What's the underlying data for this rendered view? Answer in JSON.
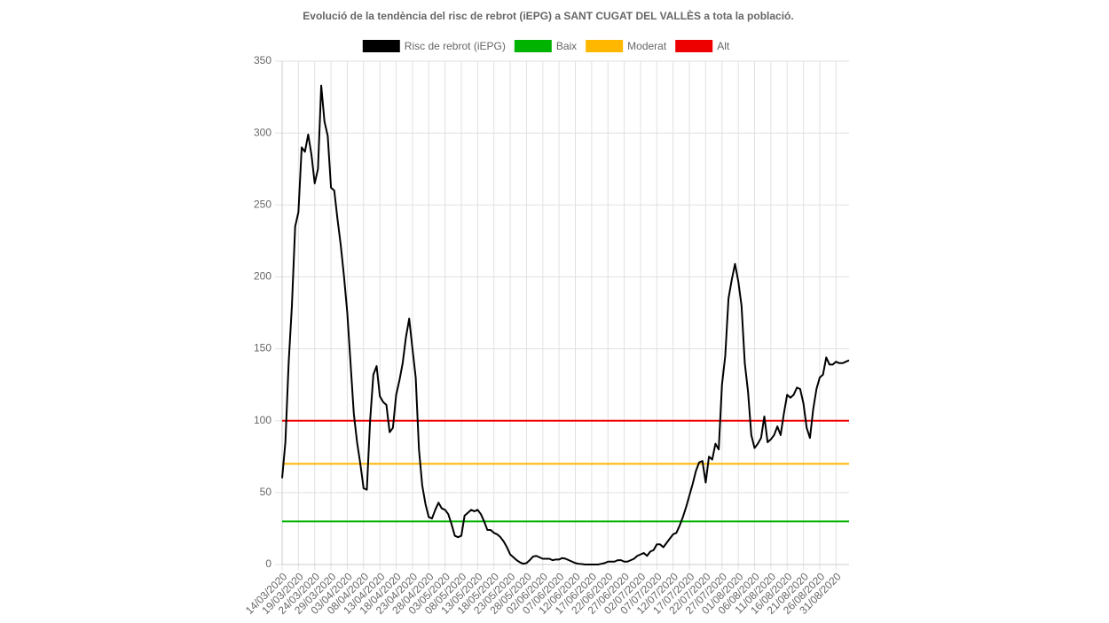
{
  "chart_data": {
    "type": "line",
    "title": "Evolució de la tendència del risc de rebrot (iEPG) a SANT CUGAT DEL VALLÈS a tota la població.",
    "categories": [
      "14/03/2020",
      null,
      null,
      null,
      null,
      "19/03/2020",
      null,
      null,
      null,
      null,
      "24/03/2020",
      null,
      null,
      null,
      null,
      "29/03/2020",
      null,
      null,
      null,
      null,
      "03/04/2020",
      null,
      null,
      null,
      null,
      "08/04/2020",
      null,
      null,
      null,
      null,
      "13/04/2020",
      null,
      null,
      null,
      null,
      "18/04/2020",
      null,
      null,
      null,
      null,
      "23/04/2020",
      null,
      null,
      null,
      null,
      "28/04/2020",
      null,
      null,
      null,
      null,
      "03/05/2020",
      null,
      null,
      null,
      null,
      "08/05/2020",
      null,
      null,
      null,
      null,
      "13/05/2020",
      null,
      null,
      null,
      null,
      "18/05/2020",
      null,
      null,
      null,
      null,
      "23/05/2020",
      null,
      null,
      null,
      null,
      "28/05/2020",
      null,
      null,
      null,
      null,
      "02/06/2020",
      null,
      null,
      null,
      null,
      "07/06/2020",
      null,
      null,
      null,
      null,
      "12/06/2020",
      null,
      null,
      null,
      null,
      "17/06/2020",
      null,
      null,
      null,
      null,
      "22/06/2020",
      null,
      null,
      null,
      null,
      "27/06/2020",
      null,
      null,
      null,
      null,
      "02/07/2020",
      null,
      null,
      null,
      null,
      "07/07/2020",
      null,
      null,
      null,
      null,
      "12/07/2020",
      null,
      null,
      null,
      null,
      "17/07/2020",
      null,
      null,
      null,
      null,
      "22/07/2020",
      null,
      null,
      null,
      null,
      "27/07/2020",
      null,
      null,
      null,
      null,
      "01/08/2020",
      null,
      null,
      null,
      null,
      "06/08/2020",
      null,
      null,
      null,
      null,
      "11/08/2020",
      null,
      null,
      null,
      null,
      "16/08/2020",
      null,
      null,
      null,
      null,
      "21/08/2020",
      null,
      null,
      null,
      null,
      "26/08/2020",
      null,
      null,
      null,
      null,
      "31/08/2020",
      null,
      null,
      null,
      null
    ],
    "series": [
      {
        "name": "Risc de rebrot (iEPG)",
        "color": "#000000",
        "values": [
          60,
          85,
          140,
          180,
          235,
          245,
          290,
          287,
          299,
          285,
          265,
          275,
          333,
          308,
          298,
          262,
          260,
          240,
          222,
          200,
          175,
          140,
          105,
          85,
          70,
          53,
          52,
          100,
          132,
          138,
          117,
          113,
          111,
          92,
          95,
          118,
          128,
          140,
          158,
          171,
          150,
          130,
          80,
          55,
          42,
          33,
          32,
          38,
          43,
          39,
          38,
          35,
          28,
          20,
          19,
          20,
          34,
          36,
          38,
          37,
          38,
          35,
          30,
          24,
          24,
          22,
          21,
          19,
          16,
          12,
          7,
          5,
          3,
          1.5,
          0.5,
          1,
          3,
          5.5,
          6,
          5,
          4,
          4,
          4,
          3,
          3.5,
          3.5,
          4.5,
          4,
          3,
          2,
          1,
          0.5,
          0.3,
          0,
          0,
          0,
          0,
          0,
          0.5,
          1,
          2,
          2,
          2,
          3,
          3,
          2,
          2,
          3,
          4,
          6,
          7,
          8,
          6,
          9,
          10,
          14,
          14,
          12,
          15,
          18,
          21,
          22,
          27,
          33,
          40,
          48,
          56,
          65,
          71,
          72,
          57,
          75,
          73,
          84,
          80,
          125,
          145,
          185,
          198,
          209,
          197,
          180,
          140,
          120,
          90,
          81,
          84,
          88,
          103,
          85,
          87,
          90,
          96,
          90,
          105,
          118,
          116,
          118,
          123,
          122,
          112,
          95,
          88,
          108,
          122,
          130,
          132,
          144,
          139,
          139,
          141,
          140,
          140,
          141,
          142
        ]
      }
    ],
    "reference_lines": [
      {
        "name": "Baix",
        "color": "#00b300",
        "value": 30
      },
      {
        "name": "Moderat",
        "color": "#ffb700",
        "value": 70
      },
      {
        "name": "Alt",
        "color": "#ee0000",
        "value": 100
      }
    ],
    "ylim": [
      0,
      350
    ],
    "yticks": [
      0,
      50,
      100,
      150,
      200,
      250,
      300,
      350
    ],
    "grid": true
  }
}
